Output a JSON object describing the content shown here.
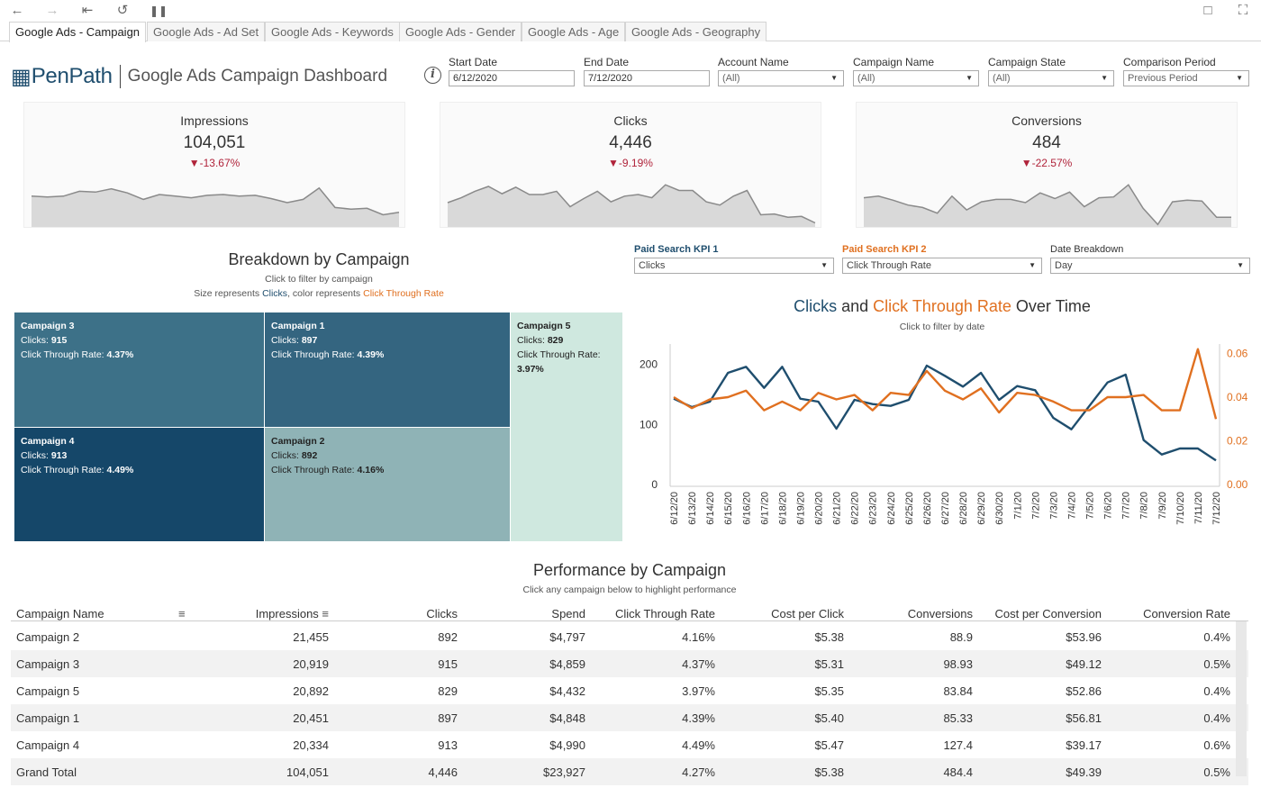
{
  "toolbar": {
    "icons": [
      "back-icon",
      "forward-icon",
      "first-page-icon",
      "revert-icon",
      "pause-updates-icon",
      "comment-icon",
      "fullscreen-icon"
    ]
  },
  "tabs": [
    "Google Ads - Campaign",
    "Google Ads - Ad Set",
    "Google Ads - Keywords",
    "Google Ads - Gender",
    "Google Ads - Age",
    "Google Ads - Geography"
  ],
  "header": {
    "brand": "PenPath",
    "title": "Google Ads Campaign Dashboard"
  },
  "filters": [
    {
      "label": "Start Date",
      "value": "6/12/2020",
      "type": "date"
    },
    {
      "label": "End Date",
      "value": "7/12/2020",
      "type": "date"
    },
    {
      "label": "Account Name",
      "value": "(All)",
      "type": "dropdown"
    },
    {
      "label": "Campaign Name",
      "value": "(All)",
      "type": "dropdown"
    },
    {
      "label": "Campaign State",
      "value": "(All)",
      "type": "dropdown"
    },
    {
      "label": "Comparison Period",
      "value": "Previous Period",
      "type": "dropdown"
    }
  ],
  "kpis": [
    {
      "title": "Impressions",
      "value": "104,051",
      "change": "-13.67%",
      "spark": [
        38,
        37,
        38,
        44,
        43,
        47,
        42,
        34,
        40,
        38,
        36,
        39,
        40,
        38,
        39,
        35,
        30,
        34,
        48,
        24,
        22,
        23,
        15,
        18
      ]
    },
    {
      "title": "Clicks",
      "value": "4,446",
      "change": "-9.19%",
      "spark": [
        30,
        36,
        44,
        50,
        41,
        49,
        40,
        40,
        44,
        25,
        35,
        44,
        31,
        38,
        40,
        36,
        52,
        45,
        45,
        31,
        27,
        38,
        45,
        15,
        16,
        12,
        13,
        5
      ]
    },
    {
      "title": "Conversions",
      "value": "484",
      "change": "-22.57%",
      "spark": [
        36,
        38,
        33,
        27,
        24,
        17,
        38,
        21,
        31,
        34,
        34,
        30,
        42,
        35,
        43,
        25,
        36,
        37,
        52,
        23,
        3,
        31,
        33,
        32,
        12,
        12
      ]
    }
  ],
  "breakdown": {
    "title": "Breakdown by Campaign",
    "subtitle1": "Click to filter by campaign",
    "subtitle2_prefix": "Size represents ",
    "subtitle2_size": "Clicks",
    "subtitle2_mid": ", color represents ",
    "subtitle2_color": "Click Through Rate",
    "cells": [
      {
        "name": "Campaign 3",
        "clicks_label": "Clicks: ",
        "clicks": "915",
        "ctr_label": "Click Through Rate: ",
        "ctr": "4.37%",
        "color": "#3d7188"
      },
      {
        "name": "Campaign 1",
        "clicks_label": "Clicks: ",
        "clicks": "897",
        "ctr_label": "Click Through Rate: ",
        "ctr": "4.39%",
        "color": "#346580"
      },
      {
        "name": "Campaign 5",
        "clicks_label": "Clicks: ",
        "clicks": "829",
        "ctr_label": "Click Through Rate: ",
        "ctr": "3.97%",
        "color": "#cfe8df"
      },
      {
        "name": "Campaign 4",
        "clicks_label": "Clicks: ",
        "clicks": "913",
        "ctr_label": "Click Through Rate: ",
        "ctr": "4.49%",
        "color": "#154769"
      },
      {
        "name": "Campaign 2",
        "clicks_label": "Clicks: ",
        "clicks": "892",
        "ctr_label": "Click Through Rate: ",
        "ctr": "4.16%",
        "color": "#8fb3b6"
      }
    ]
  },
  "kpi_selectors": [
    {
      "label": "Paid Search KPI 1",
      "value": "Clicks",
      "color": "#1f4e6e"
    },
    {
      "label": "Paid Search KPI 2",
      "value": "Click Through Rate",
      "color": "#e07020"
    },
    {
      "label": "Date Breakdown",
      "value": "Day",
      "color": "#333333"
    }
  ],
  "over_time": {
    "title_a": "Clicks",
    "title_and": " and ",
    "title_b": "Click Through Rate",
    "title_c": " Over Time",
    "subtitle": "Click to filter by date"
  },
  "chart_data": {
    "type": "line",
    "title": "Clicks and Click Through Rate Over Time",
    "x": [
      "6/12/20",
      "6/13/20",
      "6/14/20",
      "6/15/20",
      "6/16/20",
      "6/17/20",
      "6/18/20",
      "6/19/20",
      "6/20/20",
      "6/21/20",
      "6/22/20",
      "6/23/20",
      "6/24/20",
      "6/25/20",
      "6/26/20",
      "6/27/20",
      "6/28/20",
      "6/29/20",
      "6/30/20",
      "7/1/20",
      "7/2/20",
      "7/3/20",
      "7/4/20",
      "7/5/20",
      "7/6/20",
      "7/7/20",
      "7/8/20",
      "7/9/20",
      "7/10/20",
      "7/11/20",
      "7/12/20"
    ],
    "series": [
      {
        "name": "Clicks",
        "axis": "left",
        "color": "#1f4e6e",
        "values": [
          143,
          129,
          138,
          186,
          196,
          161,
          196,
          143,
          138,
          93,
          141,
          134,
          131,
          141,
          198,
          181,
          163,
          186,
          141,
          164,
          157,
          111,
          92,
          131,
          170,
          183,
          74,
          50,
          60,
          60,
          40
        ]
      },
      {
        "name": "Click Through Rate",
        "axis": "right",
        "color": "#e07020",
        "values": [
          0.04,
          0.035,
          0.039,
          0.04,
          0.043,
          0.034,
          0.038,
          0.034,
          0.042,
          0.039,
          0.041,
          0.034,
          0.042,
          0.041,
          0.052,
          0.043,
          0.039,
          0.044,
          0.033,
          0.042,
          0.041,
          0.038,
          0.034,
          0.034,
          0.04,
          0.04,
          0.041,
          0.034,
          0.034,
          0.062,
          0.03
        ]
      }
    ],
    "ylim_left": [
      0,
      240
    ],
    "yticks_left": [
      "0",
      "100",
      "200"
    ],
    "ylim_right": [
      0,
      0.066
    ],
    "yticks_right": [
      "0.00",
      "0.02",
      "0.04",
      "0.06"
    ]
  },
  "performance": {
    "title": "Performance by Campaign",
    "subtitle": "Click any campaign below to highlight performance",
    "columns": [
      "Campaign Name",
      "Impressions",
      "Clicks",
      "Spend",
      "Click Through Rate",
      "Cost per Click",
      "Conversions",
      "Cost per Conversion",
      "Conversion Rate"
    ],
    "rows": [
      [
        "Campaign 2",
        "21,455",
        "892",
        "$4,797",
        "4.16%",
        "$5.38",
        "88.9",
        "$53.96",
        "0.4%"
      ],
      [
        "Campaign 3",
        "20,919",
        "915",
        "$4,859",
        "4.37%",
        "$5.31",
        "98.93",
        "$49.12",
        "0.5%"
      ],
      [
        "Campaign 5",
        "20,892",
        "829",
        "$4,432",
        "3.97%",
        "$5.35",
        "83.84",
        "$52.86",
        "0.4%"
      ],
      [
        "Campaign 1",
        "20,451",
        "897",
        "$4,848",
        "4.39%",
        "$5.40",
        "85.33",
        "$56.81",
        "0.4%"
      ],
      [
        "Campaign 4",
        "20,334",
        "913",
        "$4,990",
        "4.49%",
        "$5.47",
        "127.4",
        "$39.17",
        "0.6%"
      ],
      [
        "Grand Total",
        "104,051",
        "4,446",
        "$23,927",
        "4.27%",
        "$5.38",
        "484.4",
        "$49.39",
        "0.5%"
      ]
    ]
  }
}
